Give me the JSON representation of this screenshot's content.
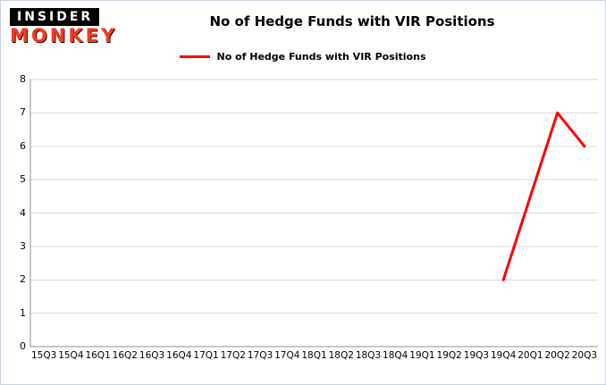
{
  "logo": {
    "line1": "INSIDER",
    "line2": "MONKEY"
  },
  "header": {
    "title": "No of Hedge Funds with VIR Positions"
  },
  "legend": {
    "label": "No of Hedge Funds with VIR Positions",
    "color": "#ff0000"
  },
  "colors": {
    "series": "#ff0000",
    "grid": "#d9d9d9",
    "axis": "#8c8c8c",
    "background": "#ffffff",
    "border": "#c9d3e2",
    "title": "#000000"
  },
  "chart_data": {
    "type": "line",
    "title": "No of Hedge Funds with VIR Positions",
    "categories": [
      "15Q3",
      "15Q4",
      "16Q1",
      "16Q2",
      "16Q3",
      "16Q4",
      "17Q1",
      "17Q2",
      "17Q3",
      "17Q4",
      "18Q1",
      "18Q2",
      "18Q3",
      "18Q4",
      "19Q1",
      "19Q2",
      "19Q3",
      "19Q4",
      "20Q1",
      "20Q2",
      "20Q3"
    ],
    "series": [
      {
        "name": "No of Hedge Funds with VIR Positions",
        "color": "#ff0000",
        "points": [
          {
            "x": "19Q4",
            "y": 2
          },
          {
            "x": "20Q2",
            "y": 7
          },
          {
            "x": "20Q3",
            "y": 6
          }
        ]
      }
    ],
    "ylim": [
      0,
      8
    ],
    "yticks": [
      0,
      1,
      2,
      3,
      4,
      5,
      6,
      7,
      8
    ],
    "grid": "horizontal",
    "legend_position": "top"
  }
}
